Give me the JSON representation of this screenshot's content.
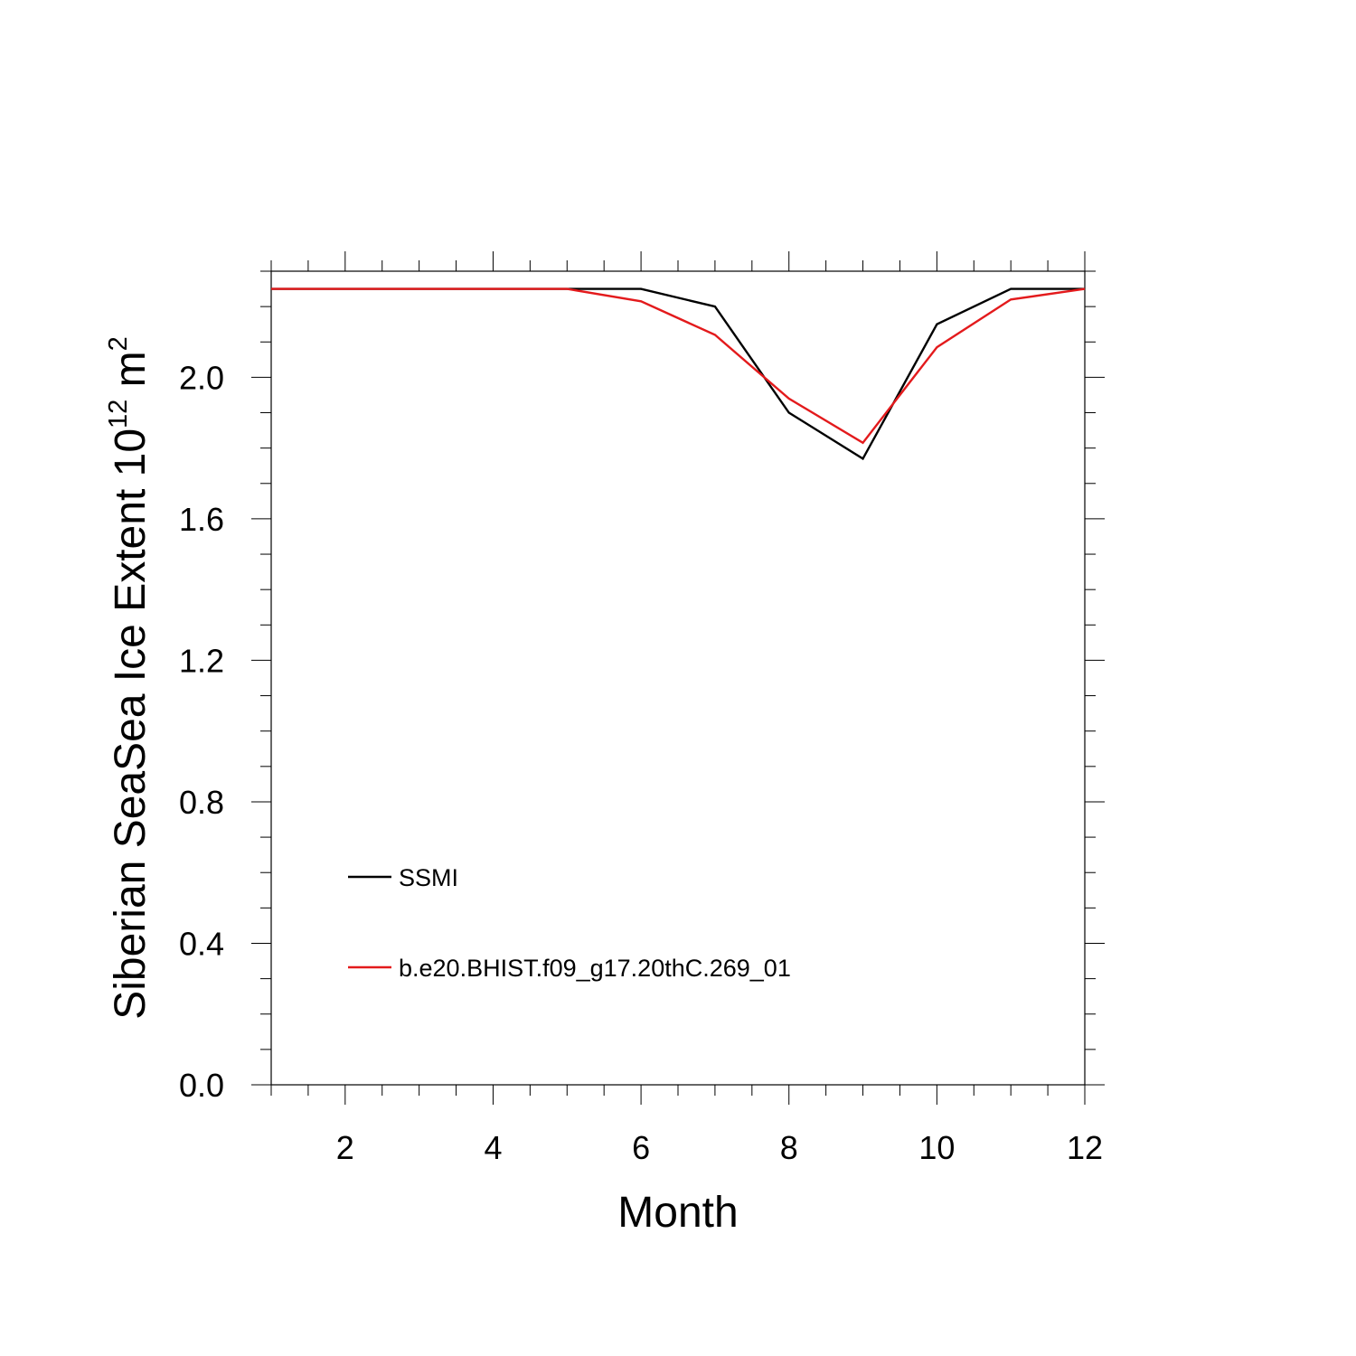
{
  "chart_data": {
    "type": "line",
    "title": "",
    "xlabel": "Month",
    "ylabel_parts": {
      "prefix": "Siberian SeaSea Ice Extent 10",
      "exponent": "12",
      "unit": " m",
      "unit_exponent": "2"
    },
    "x": [
      1,
      2,
      3,
      4,
      5,
      6,
      7,
      8,
      9,
      10,
      11,
      12
    ],
    "xlim": [
      1,
      12
    ],
    "ylim": [
      0,
      2.3
    ],
    "x_major_ticks": [
      2,
      4,
      6,
      8,
      10,
      12
    ],
    "x_tick_labels": [
      "2",
      "4",
      "6",
      "8",
      "10",
      "12"
    ],
    "y_major_ticks": [
      0.0,
      0.4,
      0.8,
      1.2,
      1.6,
      2.0
    ],
    "y_tick_labels": [
      "0.0",
      "0.4",
      "0.8",
      "1.2",
      "1.6",
      "2.0"
    ],
    "grid": false,
    "legend_position": "lower-left",
    "series": [
      {
        "name": "SSMI",
        "color": "#000000",
        "values": [
          2.25,
          2.25,
          2.25,
          2.25,
          2.25,
          2.25,
          2.2,
          1.9,
          1.77,
          2.15,
          2.25,
          2.25
        ]
      },
      {
        "name": "b.e20.BHIST.f09_g17.20thC.269_01",
        "color": "#e31a1c",
        "values": [
          2.25,
          2.25,
          2.25,
          2.25,
          2.25,
          2.215,
          2.12,
          1.94,
          1.815,
          2.085,
          2.22,
          2.25
        ]
      }
    ]
  }
}
